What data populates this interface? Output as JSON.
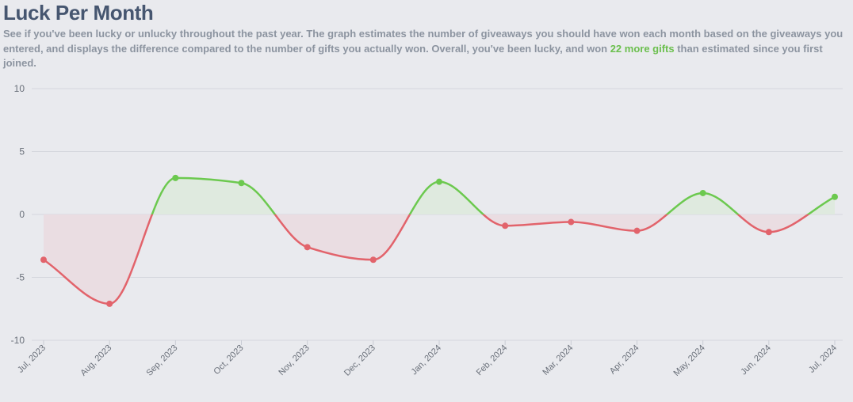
{
  "header": {
    "title": "Luck Per Month",
    "desc_part1": "See if you've been lucky or unlucky throughout the past year. The graph estimates the number of giveaways you should have won each month based on the giveaways you entered, and displays the difference compared to the number of gifts you actually won. Overall, you've been lucky, and won ",
    "desc_highlight": "22 more gifts",
    "desc_part2": " than estimated since you first joined."
  },
  "colors": {
    "positive": "#6cc94f",
    "negative": "#e2636b",
    "positive_fill": "#dfeadf",
    "negative_fill": "#eadde2",
    "grid": "#d5d7dd",
    "highlight_text": "#6bbf4e"
  },
  "chart_data": {
    "type": "area",
    "title": "",
    "xlabel": "",
    "ylabel": "",
    "ylim": [
      -10,
      10
    ],
    "yticks": [
      10,
      5,
      0,
      -5,
      -10
    ],
    "grid": true,
    "categories": [
      "Jul, 2023",
      "Aug, 2023",
      "Sep, 2023",
      "Oct, 2023",
      "Nov, 2023",
      "Dec, 2023",
      "Jan, 2024",
      "Feb, 2024",
      "Mar, 2024",
      "Apr, 2024",
      "May, 2024",
      "Jun, 2024",
      "Jul, 2024"
    ],
    "values": [
      -3.6,
      -7.1,
      2.9,
      2.5,
      -2.6,
      -3.6,
      2.6,
      -0.9,
      -0.6,
      -1.3,
      1.7,
      -1.4,
      1.4
    ]
  }
}
